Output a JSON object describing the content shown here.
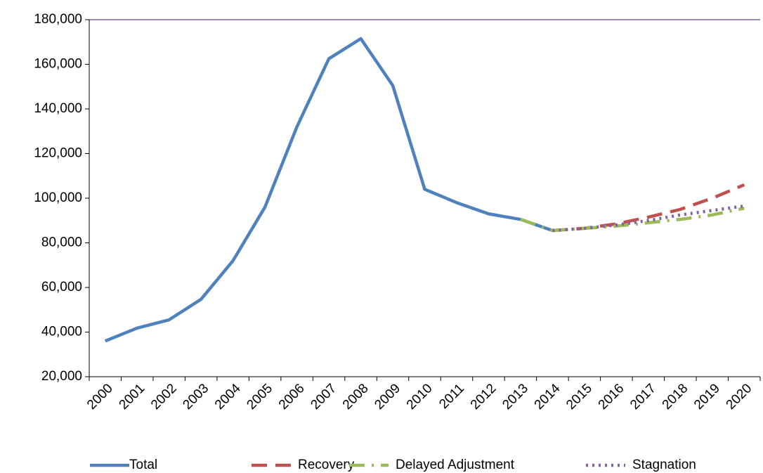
{
  "chart_data": {
    "type": "line",
    "categories": [
      "2000",
      "2001",
      "2002",
      "2003",
      "2004",
      "2005",
      "2006",
      "2007",
      "2008",
      "2009",
      "2010",
      "2011",
      "2012",
      "2013",
      "2014",
      "2015",
      "2016",
      "2017",
      "2018",
      "2019",
      "2020"
    ],
    "series": [
      {
        "name": "Total",
        "color": "#4f81bd",
        "dash": "solid",
        "values": [
          36000,
          41800,
          45500,
          54700,
          72000,
          96000,
          132000,
          162500,
          171500,
          150500,
          104000,
          98000,
          93000,
          90500,
          85500,
          null,
          null,
          null,
          null,
          null,
          null
        ]
      },
      {
        "name": "Recovery",
        "color": "#c0504d",
        "dash": "dashed",
        "values": [
          null,
          null,
          null,
          null,
          null,
          null,
          null,
          null,
          null,
          null,
          null,
          null,
          null,
          null,
          85500,
          86500,
          88500,
          91500,
          95000,
          100000,
          106000
        ]
      },
      {
        "name": "Delayed Adjustment",
        "color": "#9bbb59",
        "dash": "dash-dot",
        "values": [
          null,
          null,
          null,
          null,
          null,
          null,
          null,
          null,
          null,
          null,
          null,
          null,
          null,
          90500,
          85500,
          86500,
          87500,
          89000,
          90500,
          92500,
          95500
        ]
      },
      {
        "name": "Stagnation",
        "color": "#8064a2",
        "dash": "dotted",
        "values": [
          null,
          null,
          null,
          null,
          null,
          null,
          null,
          null,
          null,
          null,
          null,
          null,
          null,
          null,
          85500,
          86500,
          88000,
          90000,
          92500,
          94500,
          96500
        ]
      }
    ],
    "ylim": [
      20000,
      180000
    ],
    "yticks": [
      {
        "value": 20000,
        "label": "20,000"
      },
      {
        "value": 40000,
        "label": "40,000"
      },
      {
        "value": 60000,
        "label": "60,000"
      },
      {
        "value": 80000,
        "label": "80,000"
      },
      {
        "value": 100000,
        "label": "100,000"
      },
      {
        "value": 120000,
        "label": "120,000"
      },
      {
        "value": 140000,
        "label": "140,000"
      },
      {
        "value": 160000,
        "label": "160,000"
      },
      {
        "value": 180000,
        "label": "180,000"
      }
    ],
    "grid": false,
    "legend": "bottom"
  }
}
